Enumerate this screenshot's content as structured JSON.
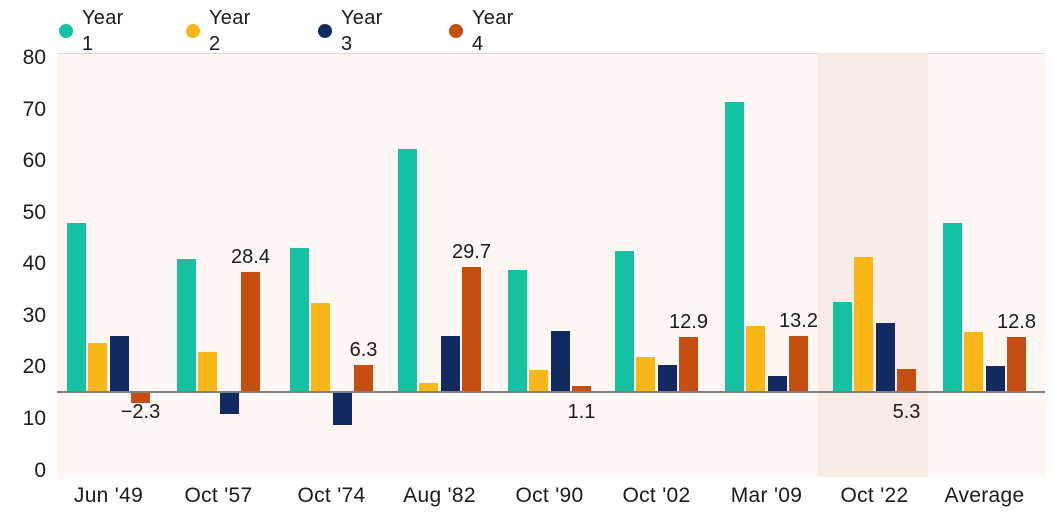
{
  "chart_data": {
    "type": "bar",
    "title": "",
    "categories": [
      "Jun '49",
      "Oct '57",
      "Oct '74",
      "Aug '82",
      "Oct '90",
      "Oct '02",
      "Mar '09",
      "Oct '22",
      "Average"
    ],
    "series": [
      {
        "name": "Year 1",
        "color": "#14c1a2",
        "values": [
          40.2,
          31.6,
          34.2,
          57.9,
          29.0,
          33.5,
          69.1,
          21.3,
          40.2
        ]
      },
      {
        "name": "Year 2",
        "color": "#f8b716",
        "values": [
          11.5,
          9.3,
          21.1,
          1.9,
          5.0,
          8.1,
          15.6,
          32.1,
          14.1
        ]
      },
      {
        "name": "Year 3",
        "color": "#112a60",
        "values": [
          13.2,
          -5.0,
          -7.7,
          13.2,
          14.4,
          6.2,
          3.6,
          16.3,
          6.0
        ]
      },
      {
        "name": "Year 4",
        "color": "#c54f10",
        "values": [
          -2.3,
          28.4,
          6.3,
          29.7,
          1.1,
          12.9,
          13.2,
          5.3,
          12.8
        ]
      }
    ],
    "data_labels": {
      "labeled_series": "Year 4",
      "labels": [
        {
          "text": "−2.3",
          "position": "below"
        },
        {
          "text": "28.4",
          "position": "above"
        },
        {
          "text": "6.3",
          "position": "above"
        },
        {
          "text": "29.7",
          "position": "above"
        },
        {
          "text": "1.1",
          "position": "below"
        },
        {
          "text": "12.9",
          "position": "above"
        },
        {
          "text": "13.2",
          "position": "above"
        },
        {
          "text": "5.3",
          "position": "below"
        },
        {
          "text": "12.8",
          "position": "above"
        }
      ]
    },
    "y_axis": {
      "ticks": [
        "80",
        "70",
        "60",
        "50",
        "40",
        "30",
        "20",
        "10",
        "0"
      ],
      "range": [
        0,
        80
      ],
      "grid": false
    },
    "legend_position": "top-left",
    "highlighted_category": "Oct '22",
    "plot_background": "#fdf6f3",
    "highlight_color": "#f8ebe5",
    "axis_line_color": "#7d8084"
  }
}
